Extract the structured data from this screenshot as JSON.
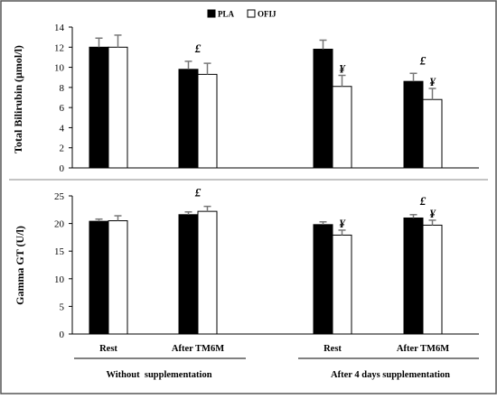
{
  "legend": {
    "items": [
      {
        "label": "PLA",
        "color": "#000000"
      },
      {
        "label": "OFIJ",
        "color": "#ffffff"
      }
    ],
    "placement": "top-center"
  },
  "x_categories": [
    "Rest",
    "After TM6M",
    "Rest",
    "After TM6M"
  ],
  "groups": [
    "Without  supplementation",
    "After 4 days supplementation"
  ],
  "chart_data": [
    {
      "type": "bar",
      "ylabel": "Total Bilirubin  (µmol/l)",
      "ylim": [
        0,
        14
      ],
      "yticks": [
        0,
        2,
        4,
        6,
        8,
        10,
        12,
        14
      ],
      "categories": [
        "Rest",
        "After TM6M",
        "Rest",
        "After TM6M"
      ],
      "series": [
        {
          "name": "PLA",
          "values": [
            12.0,
            9.8,
            11.8,
            8.6
          ],
          "errors": [
            0.9,
            0.8,
            0.9,
            0.8
          ]
        },
        {
          "name": "OFIJ",
          "values": [
            12.0,
            9.3,
            8.1,
            6.8
          ],
          "errors": [
            1.2,
            1.1,
            1.1,
            1.1
          ]
        }
      ],
      "annotations": [
        {
          "text": "£",
          "category": 1,
          "series": "both"
        },
        {
          "text": "¥",
          "category": 2,
          "series": "OFIJ"
        },
        {
          "text": "£",
          "category": 3,
          "series": "both"
        },
        {
          "text": "¥",
          "category": 3,
          "series": "OFIJ"
        }
      ],
      "grid": false
    },
    {
      "type": "bar",
      "ylabel": "Gamma GT (U/l)",
      "ylim": [
        0,
        25
      ],
      "yticks": [
        0,
        5,
        10,
        15,
        20,
        25
      ],
      "categories": [
        "Rest",
        "After TM6M",
        "Rest",
        "After TM6M"
      ],
      "series": [
        {
          "name": "PLA",
          "values": [
            20.4,
            21.6,
            19.8,
            21.0
          ],
          "errors": [
            0.4,
            0.5,
            0.5,
            0.6
          ]
        },
        {
          "name": "OFIJ",
          "values": [
            20.5,
            22.2,
            17.9,
            19.7
          ],
          "errors": [
            0.9,
            0.9,
            0.9,
            0.9
          ]
        }
      ],
      "annotations": [
        {
          "text": "£",
          "category": 1,
          "series": "both"
        },
        {
          "text": "¥",
          "category": 2,
          "series": "OFIJ"
        },
        {
          "text": "£",
          "category": 3,
          "series": "both"
        },
        {
          "text": "¥",
          "category": 3,
          "series": "OFIJ"
        }
      ],
      "grid": false
    }
  ]
}
